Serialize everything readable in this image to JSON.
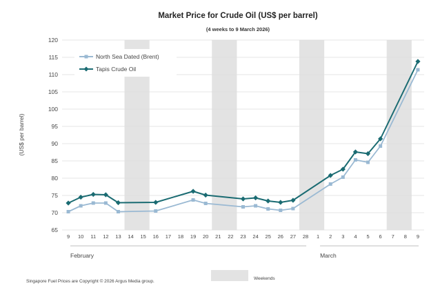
{
  "chart_data": {
    "type": "line",
    "title": "Market Price for Crude  Oil (US$ per barrel)",
    "subtitle": "(4 weeks to 9 March 2026)",
    "ylabel": "(US$ per barrel)",
    "xlabel": "",
    "ylim": [
      65,
      120
    ],
    "yticks": [
      65,
      70,
      75,
      80,
      85,
      90,
      95,
      100,
      105,
      110,
      115,
      120
    ],
    "categories": [
      "9",
      "10",
      "11",
      "12",
      "13",
      "14",
      "15",
      "16",
      "17",
      "18",
      "19",
      "20",
      "21",
      "22",
      "23",
      "24",
      "25",
      "26",
      "27",
      "28",
      "1",
      "2",
      "3",
      "4",
      "5",
      "6",
      "7",
      "8",
      "9"
    ],
    "month_labels": [
      {
        "label": "February",
        "start_index": 0
      },
      {
        "label": "March",
        "start_index": 20
      }
    ],
    "weekend_ranges": [
      [
        5,
        6
      ],
      [
        12,
        13
      ],
      [
        19,
        20
      ],
      [
        26,
        27
      ]
    ],
    "series": [
      {
        "name": "North Sea Dated (Brent)",
        "color": "#9ab9d3",
        "marker": "square",
        "values": [
          70.3,
          72.0,
          72.8,
          72.8,
          70.3,
          null,
          null,
          70.5,
          null,
          null,
          73.7,
          72.7,
          null,
          null,
          71.7,
          72.0,
          71.1,
          70.7,
          71.2,
          null,
          null,
          78.3,
          80.3,
          85.3,
          84.6,
          89.3,
          null,
          null,
          111.4
        ]
      },
      {
        "name": "Tapis Crude Oil",
        "color": "#1a6b72",
        "marker": "diamond",
        "values": [
          72.8,
          74.5,
          75.3,
          75.2,
          72.9,
          null,
          null,
          73.0,
          null,
          null,
          76.2,
          75.1,
          null,
          null,
          74.0,
          74.3,
          73.4,
          73.0,
          73.6,
          null,
          null,
          80.8,
          82.6,
          87.6,
          87.1,
          91.4,
          null,
          null,
          113.8
        ]
      }
    ],
    "weekends_legend_label": "Weekends",
    "weekend_color": "#e3e3e3",
    "footnote": "Singapore Fuel Prices are Copyright © 2026 Argus Media group.",
    "grid": true,
    "legend_position": "top-left"
  }
}
